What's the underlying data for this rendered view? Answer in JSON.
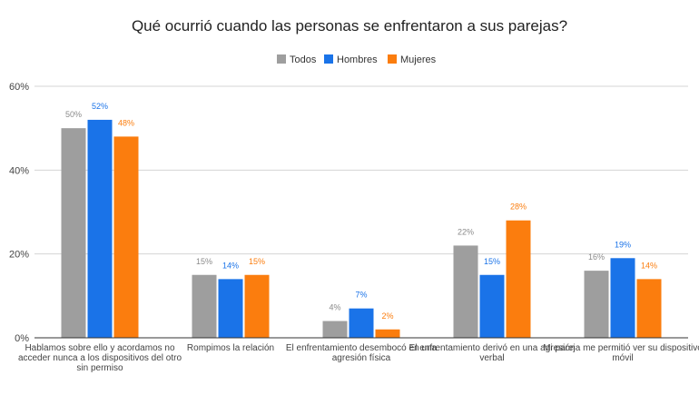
{
  "chart_data": {
    "type": "bar",
    "title": "Qué ocurrió cuando las personas se enfrentaron a sus parejas?",
    "xlabel": "",
    "ylabel": "",
    "ylim": [
      0,
      60
    ],
    "yticks": [
      "0%",
      "20%",
      "40%",
      "60%"
    ],
    "ytick_values": [
      0,
      20,
      40,
      60
    ],
    "grid": true,
    "legend_position": "top",
    "categories": [
      [
        "Hablamos sobre ello y acordamos no",
        "acceder nunca a los dispositivos del otro",
        "sin permiso"
      ],
      [
        "Rompimos la relación"
      ],
      [
        "El enfrentamiento desembocó en una",
        "agresión física"
      ],
      [
        "El enfrentamiento derivó en una agresión",
        "verbal"
      ],
      [
        "Mi pareja me permitió ver su dispositivo",
        "móvil"
      ]
    ],
    "series": [
      {
        "name": "Todos",
        "color": "#9e9e9e",
        "label_color": "#8a8a8a",
        "values": [
          50,
          15,
          4,
          22,
          16
        ],
        "labels": [
          "50%",
          "15%",
          "4%",
          "22%",
          "16%"
        ]
      },
      {
        "name": "Hombres",
        "color": "#1a73e8",
        "label_color": "#1a73e8",
        "values": [
          52,
          14,
          7,
          15,
          19
        ],
        "labels": [
          "52%",
          "14%",
          "7%",
          "15%",
          "19%"
        ]
      },
      {
        "name": "Mujeres",
        "color": "#fb7d0e",
        "label_color": "#fb7d0e",
        "values": [
          48,
          15,
          2,
          28,
          14
        ],
        "labels": [
          "48%",
          "15%",
          "2%",
          "28%",
          "14%"
        ]
      }
    ]
  }
}
